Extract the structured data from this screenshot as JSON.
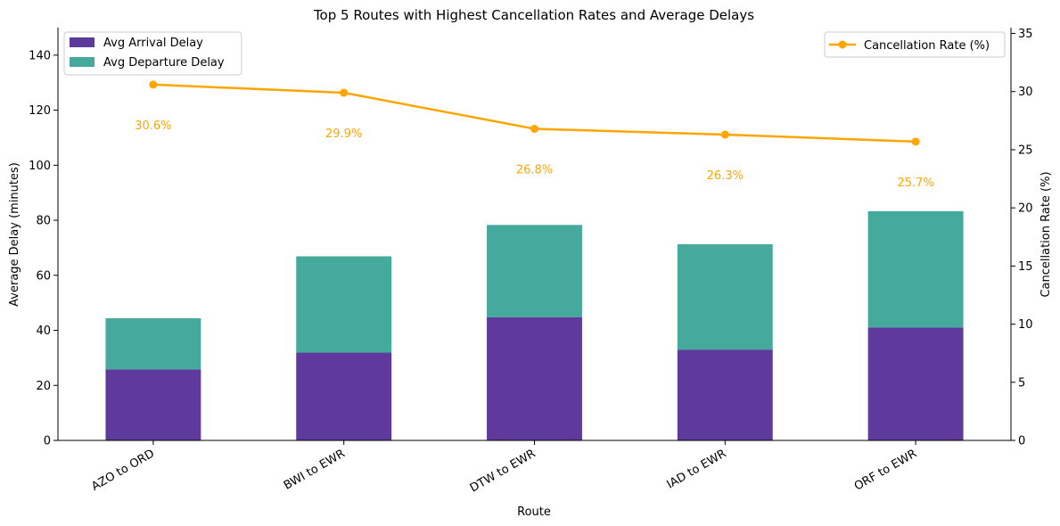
{
  "chart_data": {
    "type": "bar",
    "stacked": true,
    "title": "Top 5 Routes with Highest Cancellation Rates and Average Delays",
    "xlabel": "Route",
    "ylabel": "Average Delay (minutes)",
    "y2label": "Cancellation Rate (%)",
    "categories": [
      "AZO to ORD",
      "BWI to EWR",
      "DTW to EWR",
      "IAD to EWR",
      "ORF to EWR"
    ],
    "ylim": [
      0,
      150
    ],
    "y2lim": [
      0,
      35.5
    ],
    "yticks": [
      0,
      20,
      40,
      60,
      80,
      100,
      120,
      140
    ],
    "y2ticks": [
      0,
      5,
      10,
      15,
      20,
      25,
      30,
      35
    ],
    "series": [
      {
        "name": "Avg Arrival Delay",
        "values": [
          25.8,
          31.9,
          44.8,
          33.0,
          41.0
        ],
        "color": "#5e3a9c"
      },
      {
        "name": "Avg Departure Delay",
        "values": [
          18.6,
          35.0,
          33.5,
          38.3,
          42.3
        ],
        "color": "#45aa9b"
      }
    ],
    "line_series": {
      "name": "Cancellation Rate (%)",
      "values": [
        30.6,
        29.9,
        26.8,
        26.3,
        25.7
      ],
      "labels": [
        "30.6%",
        "29.9%",
        "26.8%",
        "26.3%",
        "25.7%"
      ],
      "color": "#ffa500",
      "axis": "right"
    },
    "legend_bars_position": "top-left",
    "legend_line_position": "top-right",
    "grid": false
  }
}
